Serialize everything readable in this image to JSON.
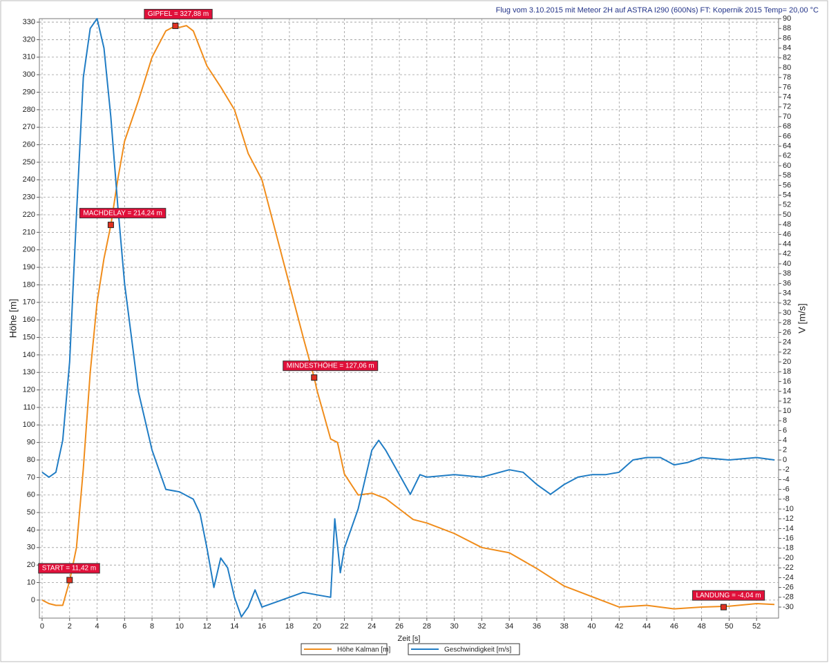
{
  "chart_data": {
    "type": "line",
    "title": "Flug vom 3.10.2015 mit Meteor 2H auf ASTRA I290 (600Ns) FT: Kopernik 2015 Temp= 20,00 °C",
    "x_label": "Zeit [s]",
    "y_label": "Höhe [m]",
    "y2_label": "V [m/s]",
    "xlim": [
      -0.2,
      53.6
    ],
    "ylim": [
      -10.3,
      332
    ],
    "y2lim": [
      -32.25,
      90
    ],
    "xticks": [
      0,
      2,
      4,
      6,
      8,
      10,
      12,
      14,
      16,
      18,
      20,
      22,
      24,
      26,
      28,
      30,
      32,
      34,
      36,
      38,
      40,
      42,
      44,
      46,
      48,
      50,
      52
    ],
    "yticks": [
      0,
      10,
      20,
      30,
      40,
      50,
      60,
      70,
      80,
      90,
      100,
      110,
      120,
      130,
      140,
      150,
      160,
      170,
      180,
      190,
      200,
      210,
      220,
      230,
      240,
      250,
      260,
      270,
      280,
      290,
      300,
      310,
      320,
      330
    ],
    "y2ticks": [
      -30,
      -28,
      -26,
      -24,
      -22,
      -20,
      -18,
      -16,
      -14,
      -12,
      -10,
      -8,
      -6,
      -4,
      -2,
      0,
      2,
      4,
      6,
      8,
      10,
      12,
      14,
      16,
      18,
      20,
      22,
      24,
      26,
      28,
      30,
      32,
      34,
      36,
      38,
      40,
      42,
      44,
      46,
      48,
      50,
      52,
      54,
      56,
      58,
      60,
      62,
      64,
      66,
      68,
      70,
      72,
      74,
      76,
      78,
      80,
      82,
      84,
      86,
      88,
      90
    ],
    "grid": true,
    "series": [
      {
        "name": "Höhe Kalman [m]",
        "color": "#f08c1a",
        "x": [
          0,
          0.5,
          1,
          1.5,
          2,
          2.5,
          3,
          3.5,
          4,
          4.5,
          5,
          5.5,
          6,
          7,
          8,
          9,
          9.7,
          10,
          10.5,
          11,
          12,
          13,
          14,
          15,
          16,
          17,
          18,
          19,
          19.8,
          20,
          21,
          21.5,
          22,
          23,
          24,
          25,
          26,
          27,
          28,
          30,
          32,
          34,
          36,
          38,
          40,
          42,
          44,
          46,
          48,
          50,
          52,
          53.3
        ],
        "values": [
          0,
          -2,
          -3,
          -3,
          11,
          30,
          75,
          130,
          170,
          195,
          214,
          240,
          262,
          285,
          310,
          325,
          327.9,
          327,
          328,
          325,
          305,
          293,
          280,
          255,
          240,
          210,
          180,
          150,
          127,
          120,
          92,
          90,
          72,
          60,
          61,
          58,
          52,
          46,
          44,
          38,
          30,
          27,
          18,
          8,
          2,
          -4,
          -3,
          -5,
          -4,
          -3.5,
          -2,
          -2.5
        ]
      },
      {
        "name": "Geschwindigkeit [m/s]",
        "color": "#1f7cc4",
        "axis": "y2",
        "x": [
          0,
          0.5,
          1,
          1.5,
          2,
          2.5,
          3,
          3.5,
          4,
          4.5,
          5,
          5.5,
          6,
          6.5,
          7,
          8,
          9,
          10,
          11,
          11.5,
          12,
          12.5,
          13,
          13.5,
          14,
          14.5,
          15,
          15.5,
          16,
          17,
          18,
          19,
          20,
          21,
          21.3,
          21.7,
          22,
          23,
          24,
          24.5,
          25,
          26,
          26.8,
          27.5,
          28,
          30,
          32,
          34,
          35,
          36,
          37,
          38,
          39,
          40,
          41,
          42,
          43,
          44,
          45,
          46,
          47,
          48,
          50,
          52,
          53.3
        ],
        "values": [
          -2.5,
          -3.5,
          -2.5,
          4,
          20,
          50,
          78,
          88,
          90,
          84,
          70,
          52,
          36,
          25,
          14,
          2,
          -6,
          -6.5,
          -8,
          -11,
          -18,
          -26,
          -20,
          -22,
          -28,
          -32,
          -30,
          -26.5,
          -30,
          -29,
          -28,
          -27,
          -27.5,
          -28,
          -12,
          -23,
          -18,
          -10,
          2,
          4,
          2,
          -3,
          -7,
          -3,
          -3.5,
          -3,
          -3.5,
          -2,
          -2.5,
          -5,
          -7,
          -5,
          -3.5,
          -3,
          -3,
          -2.5,
          0,
          0.5,
          0.5,
          -1,
          -0.5,
          0.5,
          0,
          0.5,
          0
        ]
      }
    ],
    "annotations": [
      {
        "label": "START = 11,42 m",
        "x": 2.0,
        "y": 11.42
      },
      {
        "label": "MACHDELAY = 214,24 m",
        "x": 5.0,
        "y": 214.24
      },
      {
        "label": "GIPFEL = 327,88 m",
        "x": 9.7,
        "y": 327.88
      },
      {
        "label": "MINDESTHÖHE = 127,06 m",
        "x": 19.8,
        "y": 127.06
      },
      {
        "label": "LANDUNG = -4,04 m",
        "x": 49.6,
        "y": -4.04
      }
    ]
  }
}
